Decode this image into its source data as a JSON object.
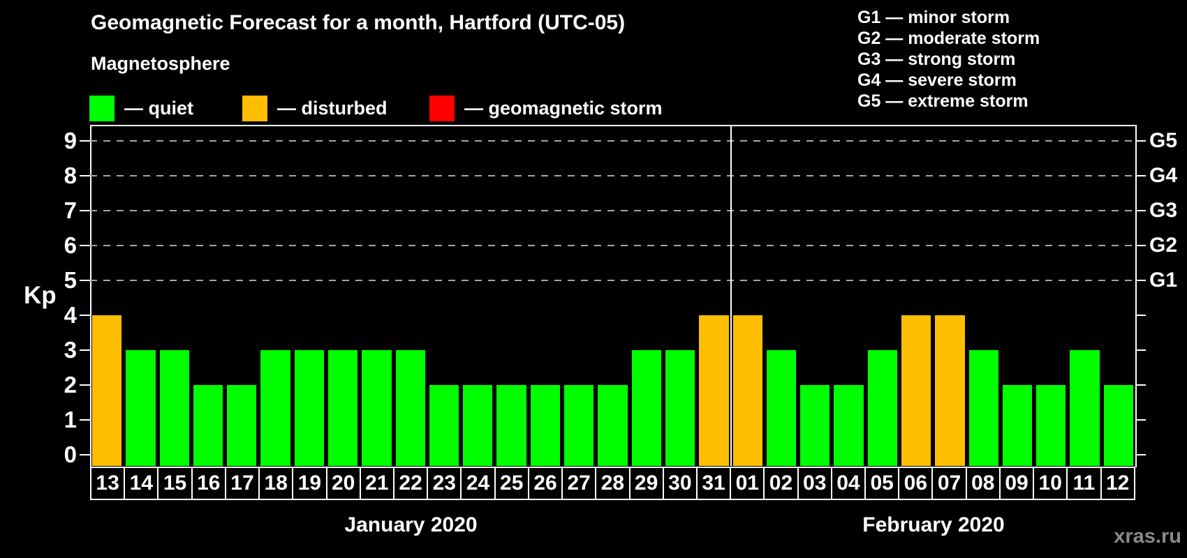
{
  "title": "Geomagnetic Forecast for a month, Hartford (UTC-05)",
  "subtitle": "Magnetosphere",
  "legend": {
    "items": [
      {
        "name": "quiet",
        "label": "— quiet",
        "color": "#00ff00"
      },
      {
        "name": "disturbed",
        "label": "— disturbed",
        "color": "#ffbf00"
      },
      {
        "name": "geomagnetic-storm",
        "label": "— geomagnetic storm",
        "color": "#ff0000"
      }
    ]
  },
  "storm_scale_legend": {
    "lines": [
      "G1 — minor storm",
      "G2 — moderate storm",
      "G3 — strong storm",
      "G4 — severe storm",
      "G5 — extreme storm"
    ]
  },
  "watermark": "xras.ru",
  "chart_data": {
    "type": "bar",
    "title": "Geomagnetic Forecast for a month, Hartford (UTC-05)",
    "ylabel": "Kp",
    "ylim": [
      0,
      9
    ],
    "yticks": [
      0,
      1,
      2,
      3,
      4,
      5,
      6,
      7,
      8,
      9
    ],
    "grid": "dashed horizontal lines at Kp 5,6,7,8,9",
    "legend_position": "top",
    "right_axis_labels": [
      {
        "value": 5,
        "label": "G1"
      },
      {
        "value": 6,
        "label": "G2"
      },
      {
        "value": 7,
        "label": "G3"
      },
      {
        "value": 8,
        "label": "G4"
      },
      {
        "value": 9,
        "label": "G5"
      }
    ],
    "months": [
      {
        "label": "January 2020",
        "days": 19
      },
      {
        "label": "February 2020",
        "days": 12
      }
    ],
    "categories": [
      "13",
      "14",
      "15",
      "16",
      "17",
      "18",
      "19",
      "20",
      "21",
      "22",
      "23",
      "24",
      "25",
      "26",
      "27",
      "28",
      "29",
      "30",
      "31",
      "01",
      "02",
      "03",
      "04",
      "05",
      "06",
      "07",
      "08",
      "09",
      "10",
      "11",
      "12"
    ],
    "values": [
      4,
      3,
      3,
      2,
      2,
      3,
      3,
      3,
      3,
      3,
      2,
      2,
      2,
      2,
      2,
      2,
      3,
      3,
      4,
      4,
      3,
      2,
      2,
      3,
      4,
      4,
      3,
      2,
      2,
      3,
      2
    ],
    "statuses": [
      "disturbed",
      "quiet",
      "quiet",
      "quiet",
      "quiet",
      "quiet",
      "quiet",
      "quiet",
      "quiet",
      "quiet",
      "quiet",
      "quiet",
      "quiet",
      "quiet",
      "quiet",
      "quiet",
      "quiet",
      "quiet",
      "disturbed",
      "disturbed",
      "quiet",
      "quiet",
      "quiet",
      "quiet",
      "disturbed",
      "disturbed",
      "quiet",
      "quiet",
      "quiet",
      "quiet",
      "quiet"
    ],
    "colors": {
      "quiet": "#00ff00",
      "disturbed": "#ffbf00",
      "storm": "#ff0000",
      "grid": "#a6a6a6",
      "axis": "#ffffff",
      "background": "#000000"
    }
  }
}
